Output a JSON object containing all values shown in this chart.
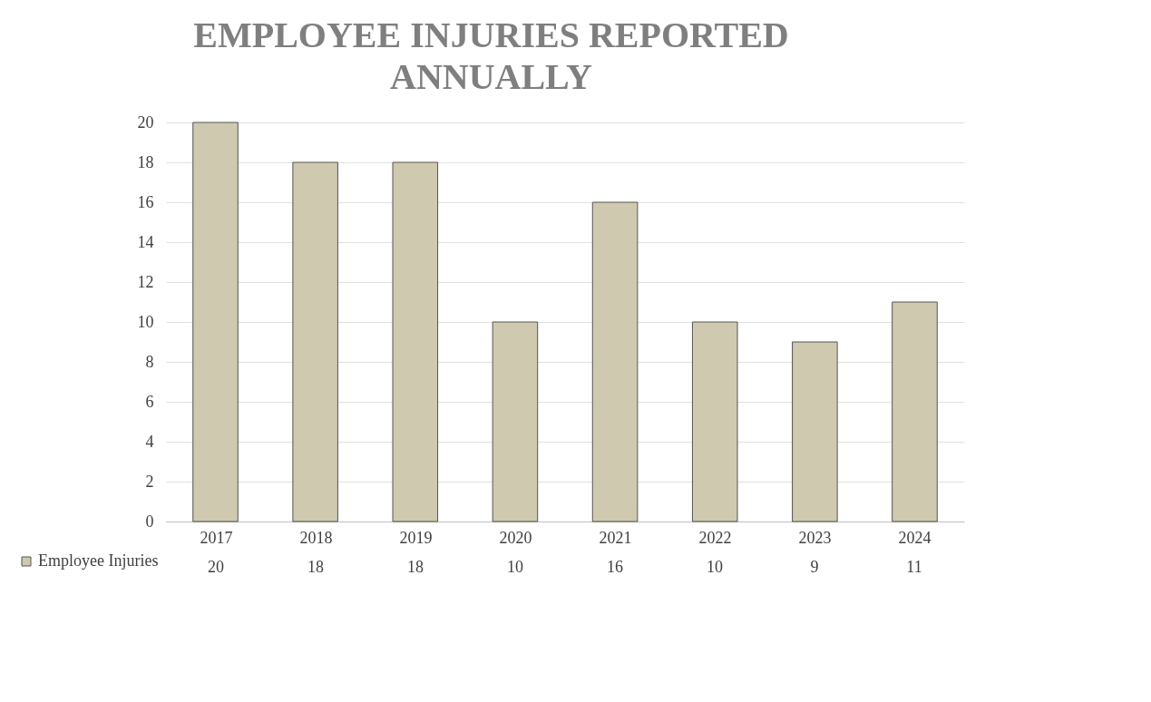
{
  "chart_data": {
    "type": "bar",
    "title": "EMPLOYEE INJURIES REPORTED ANNUALLY",
    "categories": [
      "2017",
      "2018",
      "2019",
      "2020",
      "2021",
      "2022",
      "2023",
      "2024"
    ],
    "series": [
      {
        "name": "Employee Injuries",
        "color": "#cfc9b0",
        "values": [
          20,
          18,
          18,
          10,
          16,
          10,
          9,
          11
        ]
      }
    ],
    "ylim": [
      0,
      20
    ],
    "yticks": [
      0,
      2,
      4,
      6,
      8,
      10,
      12,
      14,
      16,
      18,
      20
    ],
    "grid": "y",
    "legend": "bottom",
    "data_labels": true
  }
}
